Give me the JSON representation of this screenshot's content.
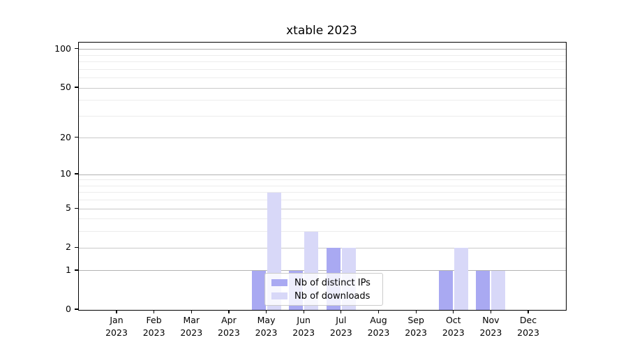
{
  "chart_data": {
    "type": "bar",
    "title": "xtable 2023",
    "categories": [
      "Jan 2023",
      "Feb 2023",
      "Mar 2023",
      "Apr 2023",
      "May 2023",
      "Jun 2023",
      "Jul 2023",
      "Aug 2023",
      "Sep 2023",
      "Oct 2023",
      "Nov 2023",
      "Dec 2023"
    ],
    "series": [
      {
        "name": "Nb of distinct IPs",
        "color": "#a9a9f2",
        "values": [
          0,
          0,
          0,
          0,
          1,
          1,
          2,
          0,
          0,
          1,
          1,
          0
        ]
      },
      {
        "name": "Nb of downloads",
        "color": "#d8d8f8",
        "values": [
          0,
          0,
          0,
          0,
          7,
          3,
          2,
          0,
          0,
          2,
          1,
          0
        ]
      }
    ],
    "xlabel": "",
    "ylabel": "",
    "y_axis": {
      "scale": "log1p",
      "ticks": [
        0,
        1,
        2,
        5,
        10,
        20,
        50,
        100
      ],
      "minor_ticks": [
        3,
        4,
        6,
        7,
        8,
        9,
        30,
        40,
        60,
        70,
        80,
        90
      ],
      "emphasized_ticks": [
        1,
        10,
        100
      ],
      "min": 0,
      "max": 113
    },
    "grid": "horizontal",
    "legend_position": "lower-center-inside"
  },
  "colors": {
    "bar_distinct_ips": "#a9a9f2",
    "bar_downloads": "#d8d8f8",
    "grid_major": "#c9c9c9",
    "grid_emphasized": "#b2b2b2",
    "grid_minor": "#ececec",
    "spine": "#000000",
    "legend_border": "#cbcbcb"
  }
}
